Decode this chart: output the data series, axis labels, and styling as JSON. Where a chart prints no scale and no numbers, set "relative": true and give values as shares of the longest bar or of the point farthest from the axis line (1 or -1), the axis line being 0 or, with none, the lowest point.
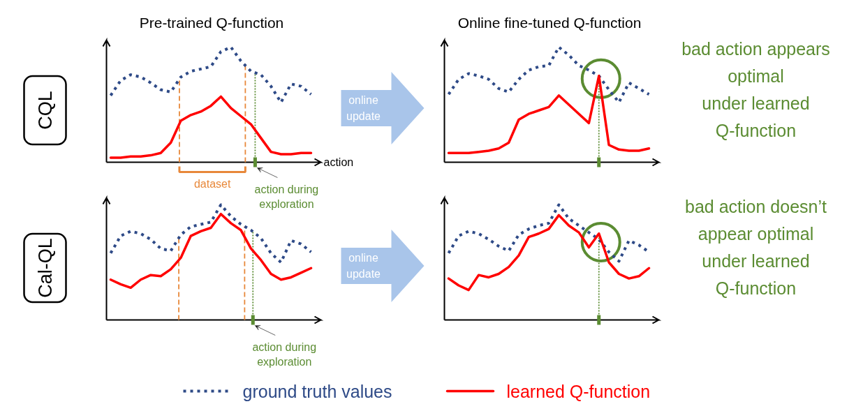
{
  "chart_data": [
    {
      "type": "line",
      "relative": true,
      "title": "Pre-trained Q-function",
      "xlabel": "action",
      "ylabel": "CQL",
      "legend": "bottom",
      "categories": [
        null,
        null,
        null,
        null,
        null,
        null,
        null,
        null,
        null,
        null,
        null,
        null,
        null,
        null,
        null,
        null,
        null,
        null,
        null,
        null,
        null
      ],
      "series": [
        {
          "name": "ground truth values",
          "color": "#2e4a87",
          "line_style": "dotted",
          "values": [
            0.58,
            0.71,
            0.76,
            0.74,
            0.69,
            0.63,
            0.61,
            0.74,
            0.79,
            0.81,
            0.83,
            0.96,
            1.0,
            0.88,
            0.79,
            0.76,
            0.66,
            0.52,
            0.68,
            0.66,
            0.59
          ]
        },
        {
          "name": "learned Q-function",
          "color": "#ff0000",
          "line_style": "solid",
          "values": [
            0.04,
            0.04,
            0.05,
            0.05,
            0.06,
            0.08,
            0.17,
            0.36,
            0.41,
            0.44,
            0.49,
            0.57,
            0.47,
            0.4,
            0.33,
            0.21,
            0.09,
            0.07,
            0.07,
            0.08,
            0.08
          ]
        }
      ],
      "annotations": [
        "dataset",
        "action during\nexploration"
      ]
    },
    {
      "type": "line",
      "relative": true,
      "title": "Online fine-tuned Q-function",
      "categories": [
        null,
        null,
        null,
        null,
        null,
        null,
        null,
        null,
        null,
        null,
        null,
        null,
        null,
        null,
        null,
        null,
        null,
        null,
        null,
        null,
        null
      ],
      "series": [
        {
          "color": "#2e4a87",
          "line_style": "dotted",
          "values": [
            0.59,
            0.72,
            0.77,
            0.75,
            0.72,
            0.64,
            0.61,
            0.72,
            0.8,
            0.83,
            0.84,
            1.0,
            0.93,
            0.84,
            0.8,
            0.75,
            0.63,
            0.52,
            0.69,
            0.64,
            0.59
          ]
        },
        {
          "color": "#ff0000",
          "line_style": "solid",
          "values": [
            0.08,
            0.08,
            0.08,
            0.09,
            0.1,
            0.12,
            0.17,
            0.37,
            0.42,
            0.45,
            0.48,
            0.58,
            0.5,
            0.42,
            0.34,
            0.75,
            0.15,
            0.11,
            0.1,
            0.1,
            0.12
          ]
        }
      ],
      "annotations": [
        "online\nupdate",
        "bad action appears\noptimal\nunder learned\nQ-function"
      ]
    },
    {
      "type": "line",
      "relative": true,
      "ylabel": "Cal-QL",
      "categories": [
        null,
        null,
        null,
        null,
        null,
        null,
        null,
        null,
        null,
        null,
        null,
        null,
        null,
        null,
        null,
        null,
        null,
        null,
        null,
        null,
        null
      ],
      "series": [
        {
          "color": "#2e4a87",
          "line_style": "dotted",
          "values": [
            0.58,
            0.73,
            0.77,
            0.75,
            0.7,
            0.62,
            0.6,
            0.74,
            0.81,
            0.83,
            0.85,
            1.0,
            0.9,
            0.83,
            0.78,
            0.71,
            0.58,
            0.5,
            0.69,
            0.66,
            0.59
          ]
        },
        {
          "color": "#ff0000",
          "line_style": "solid",
          "values": [
            0.35,
            0.31,
            0.28,
            0.35,
            0.39,
            0.38,
            0.44,
            0.54,
            0.73,
            0.77,
            0.8,
            0.92,
            0.84,
            0.78,
            0.62,
            0.52,
            0.4,
            0.35,
            0.37,
            0.41,
            0.45
          ]
        }
      ],
      "annotations": [
        "action during\nexploration"
      ]
    },
    {
      "type": "line",
      "relative": true,
      "categories": [
        null,
        null,
        null,
        null,
        null,
        null,
        null,
        null,
        null,
        null,
        null,
        null,
        null,
        null,
        null,
        null,
        null,
        null,
        null,
        null,
        null
      ],
      "series": [
        {
          "color": "#2e4a87",
          "line_style": "dotted",
          "values": [
            0.58,
            0.73,
            0.77,
            0.75,
            0.7,
            0.64,
            0.6,
            0.74,
            0.79,
            0.82,
            0.84,
            1.0,
            0.88,
            0.82,
            0.76,
            0.7,
            0.59,
            0.51,
            0.69,
            0.65,
            0.59
          ]
        },
        {
          "color": "#ff0000",
          "line_style": "solid",
          "values": [
            0.36,
            0.3,
            0.26,
            0.39,
            0.37,
            0.4,
            0.46,
            0.56,
            0.72,
            0.75,
            0.79,
            0.91,
            0.82,
            0.76,
            0.63,
            0.75,
            0.5,
            0.4,
            0.36,
            0.38,
            0.45
          ]
        }
      ],
      "annotations": [
        "online\nupdate",
        "bad action doesn’t\nappear optimal\nunder learned\nQ-function"
      ]
    }
  ]
}
